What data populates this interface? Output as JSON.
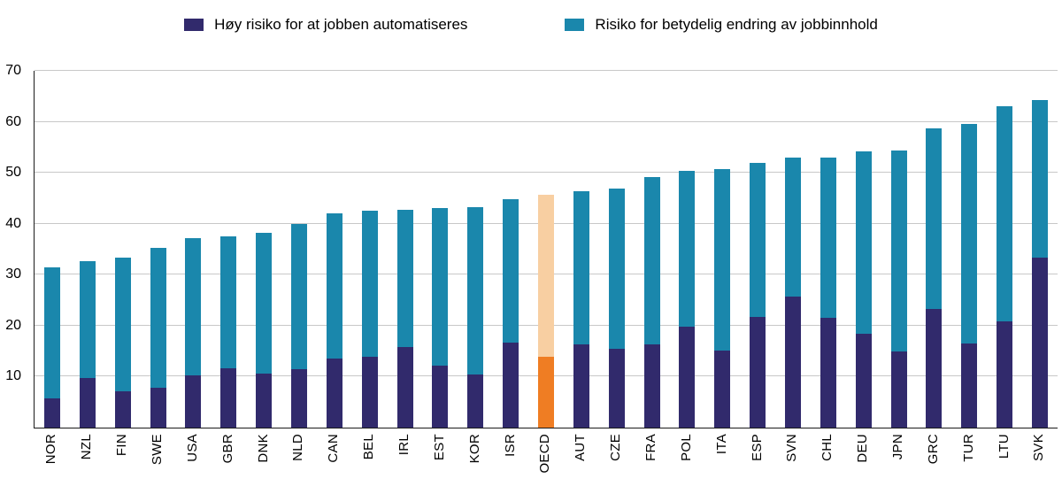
{
  "chart_data": {
    "type": "bar",
    "stacked": true,
    "title": "",
    "xlabel": "",
    "ylabel": "",
    "categories": [
      "NOR",
      "NZL",
      "FIN",
      "SWE",
      "USA",
      "GBR",
      "DNK",
      "NLD",
      "CAN",
      "BEL",
      "IRL",
      "EST",
      "KOR",
      "ISR",
      "OECD",
      "AUT",
      "CZE",
      "FRA",
      "POL",
      "ITA",
      "ESP",
      "SVN",
      "CHL",
      "DEU",
      "JPN",
      "GRC",
      "TUR",
      "LTU",
      "SVK"
    ],
    "series": [
      {
        "name": "Høy risiko for at jobben automatiseres",
        "color": "#312a6c",
        "highlight_color": "#ef7d23",
        "values": [
          5.7,
          9.7,
          7.2,
          7.9,
          10.2,
          11.6,
          10.6,
          11.4,
          13.5,
          13.9,
          15.8,
          12.2,
          10.4,
          16.7,
          13.9,
          16.4,
          15.4,
          16.3,
          19.8,
          15.2,
          21.7,
          25.7,
          21.5,
          18.4,
          15.0,
          23.3,
          16.5,
          20.9,
          33.4
        ]
      },
      {
        "name": "Risiko for betydelig endring av jobbinnhold",
        "color": "#1a87ac",
        "highlight_color": "#f8cfa2",
        "values": [
          25.7,
          23.0,
          26.2,
          27.4,
          27.0,
          26.0,
          27.6,
          28.6,
          28.5,
          28.6,
          26.9,
          30.8,
          32.8,
          28.1,
          31.7,
          30.0,
          31.5,
          32.9,
          30.6,
          35.6,
          30.3,
          27.3,
          31.5,
          35.8,
          39.3,
          35.4,
          43.0,
          42.1,
          30.9
        ]
      }
    ],
    "highlight_category": "OECD",
    "ylim": [
      0,
      70
    ],
    "yticks": [
      10,
      20,
      30,
      40,
      50,
      60,
      70
    ],
    "grid": true,
    "legend_position": "top",
    "style": {
      "grid_color": "#c8c8c8",
      "axis_color": "#1a1a1a",
      "background": "#ffffff"
    }
  }
}
